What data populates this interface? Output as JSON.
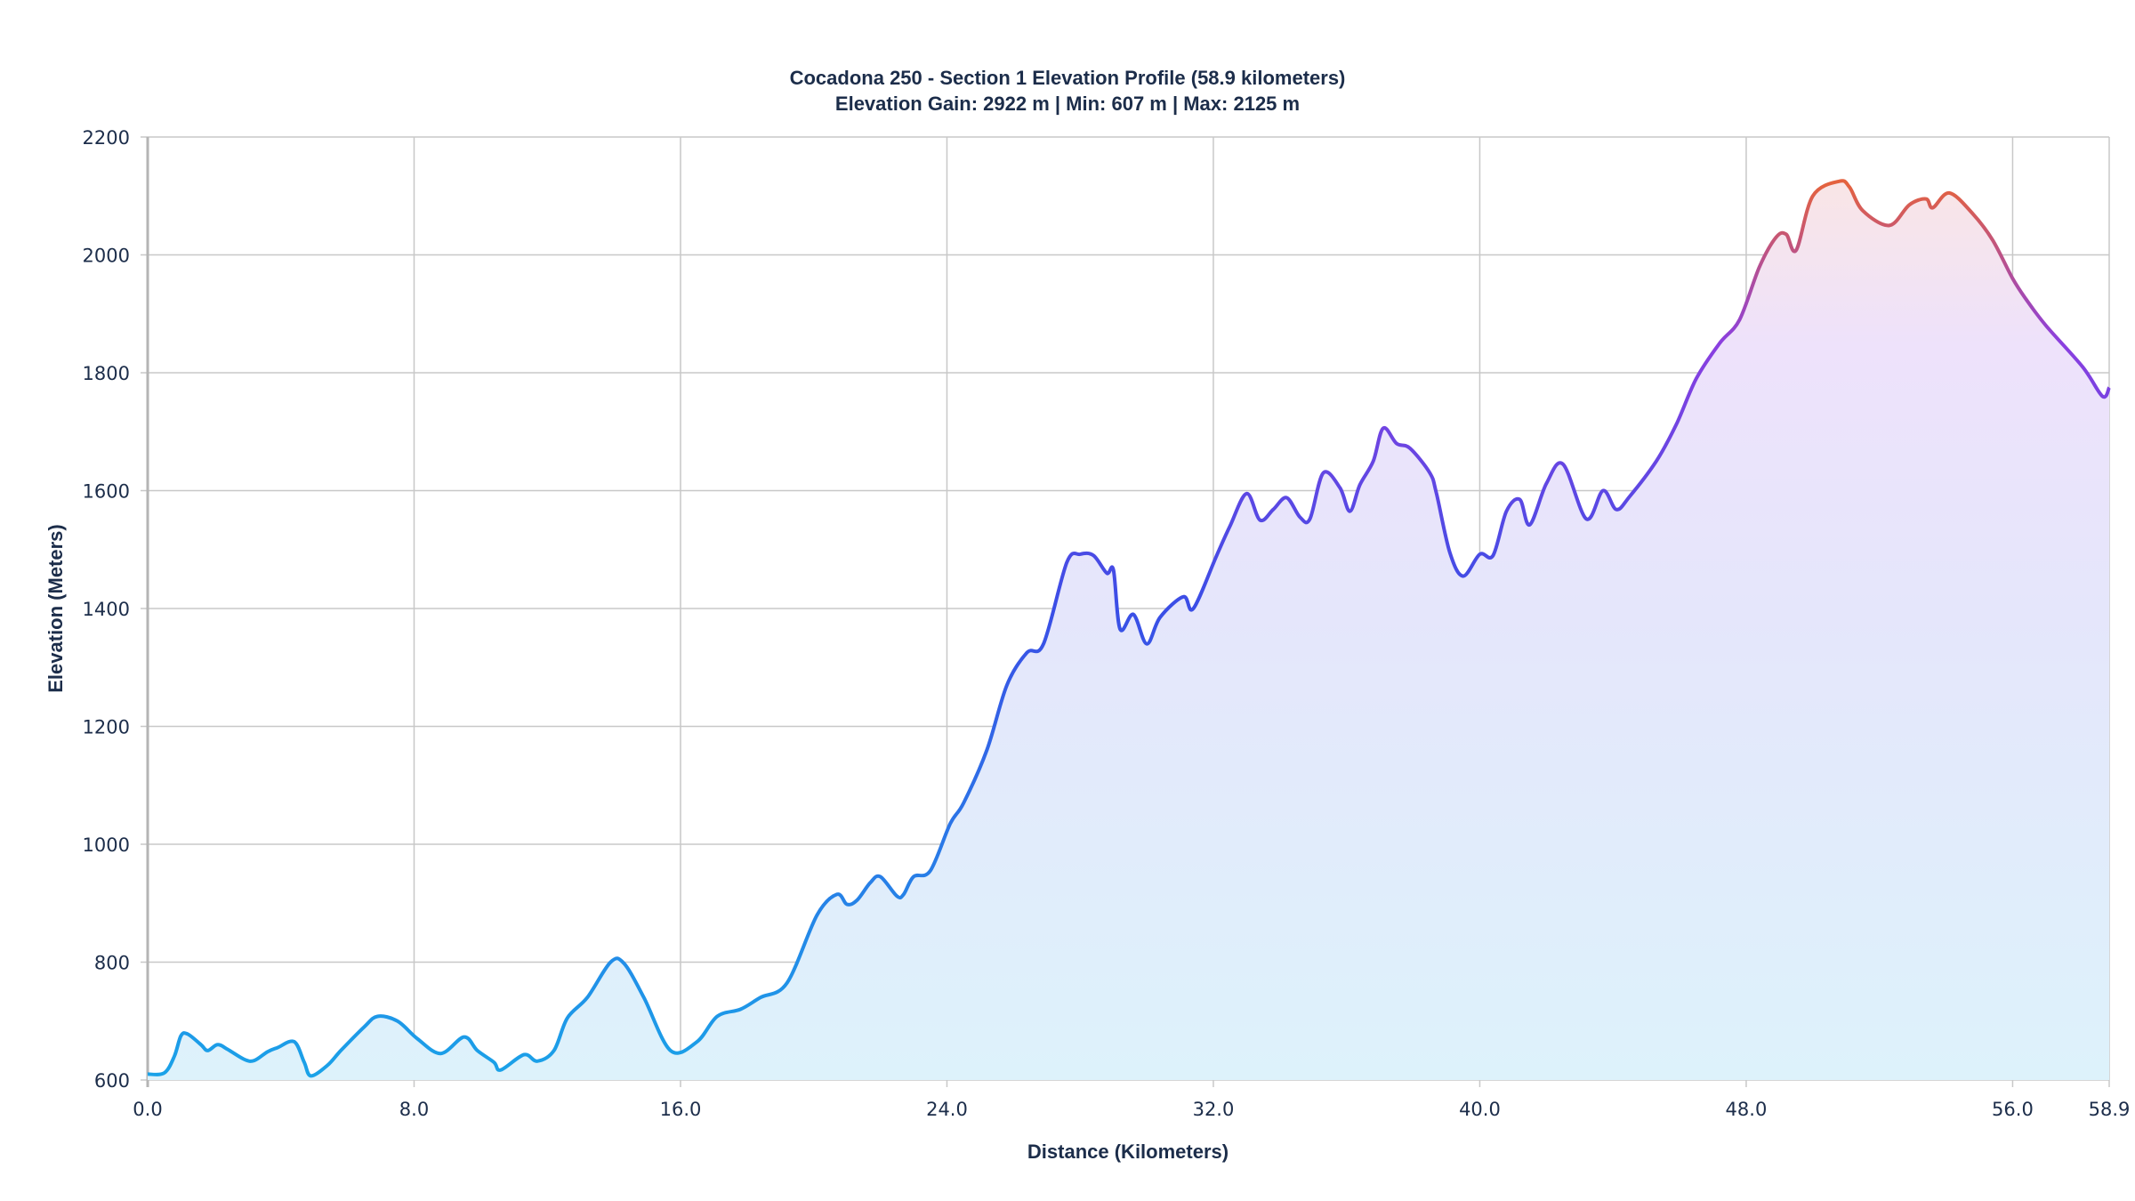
{
  "chart_data": {
    "type": "area",
    "title": "Cocadona 250 - Section 1 Elevation Profile (58.9 kilometers)",
    "subtitle": "Elevation Gain: 2922 m | Min: 607 m | Max: 2125 m",
    "xlabel": "Distance (Kilometers)",
    "ylabel": "Elevation (Meters)",
    "xlim": [
      0,
      58.9
    ],
    "ylim": [
      600,
      2200
    ],
    "x_ticks": [
      0,
      8,
      16,
      24,
      32,
      40,
      48,
      56,
      58.9
    ],
    "x_tick_labels": [
      "0.0",
      "8.0",
      "16.0",
      "24.0",
      "32.0",
      "40.0",
      "48.0",
      "56.0",
      "58.9"
    ],
    "y_ticks": [
      600,
      800,
      1000,
      1200,
      1400,
      1600,
      1800,
      2000,
      2200
    ],
    "y_tick_labels": [
      "600",
      "800",
      "1000",
      "1200",
      "1400",
      "1600",
      "1800",
      "2000",
      "2200"
    ],
    "grid": true,
    "colors": {
      "low": "#1aa3e8",
      "mid": "#3a4ee6",
      "high": "#8a3fe0",
      "peak": "#e4623f"
    },
    "x": [
      0,
      0.5,
      0.8,
      1.0,
      1.2,
      1.6,
      1.8,
      2.1,
      2.4,
      2.9,
      3.2,
      3.6,
      3.9,
      4.4,
      4.7,
      4.9,
      5.4,
      5.8,
      6.5,
      6.9,
      7.5,
      8.1,
      8.8,
      9.5,
      9.9,
      10.4,
      10.6,
      11.3,
      11.7,
      12.2,
      12.6,
      13.2,
      13.9,
      14.3,
      14.9,
      15.7,
      16.5,
      17.1,
      17.8,
      18.4,
      19.2,
      20.1,
      20.7,
      21.0,
      21.3,
      21.7,
      22.0,
      22.5,
      22.7,
      23.0,
      23.5,
      24.1,
      24.5,
      25.2,
      25.8,
      26.4,
      26.9,
      27.6,
      28.0,
      28.4,
      28.8,
      29.0,
      29.2,
      29.6,
      30.0,
      30.4,
      31.1,
      31.4,
      32.1,
      32.5,
      33.0,
      33.4,
      33.8,
      34.2,
      34.6,
      34.9,
      35.3,
      35.8,
      36.1,
      36.4,
      36.8,
      37.1,
      37.5,
      37.9,
      38.5,
      38.7,
      39.1,
      39.5,
      40.0,
      40.4,
      40.8,
      41.2,
      41.5,
      42.0,
      42.5,
      43.2,
      43.7,
      44.1,
      44.5,
      45.3,
      45.9,
      46.5,
      47.2,
      47.8,
      48.4,
      48.9,
      49.2,
      49.5,
      50.0,
      50.8,
      51.1,
      51.5,
      52.3,
      52.9,
      53.4,
      53.6,
      54.1,
      54.8,
      55.4,
      56.0,
      56.4,
      57.0,
      58.1,
      58.7,
      58.9
    ],
    "y": [
      610,
      612,
      640,
      675,
      678,
      660,
      650,
      660,
      652,
      635,
      633,
      648,
      655,
      665,
      630,
      607,
      625,
      650,
      690,
      708,
      700,
      670,
      645,
      673,
      650,
      630,
      617,
      643,
      632,
      650,
      705,
      740,
      800,
      798,
      740,
      650,
      665,
      708,
      720,
      740,
      765,
      880,
      915,
      898,
      905,
      935,
      945,
      912,
      915,
      945,
      955,
      1035,
      1070,
      1160,
      1270,
      1325,
      1340,
      1478,
      1492,
      1490,
      1460,
      1465,
      1365,
      1390,
      1340,
      1385,
      1420,
      1400,
      1490,
      1540,
      1595,
      1550,
      1568,
      1588,
      1555,
      1552,
      1630,
      1605,
      1565,
      1610,
      1650,
      1706,
      1680,
      1672,
      1630,
      1595,
      1495,
      1455,
      1492,
      1490,
      1565,
      1585,
      1542,
      1612,
      1645,
      1552,
      1600,
      1568,
      1590,
      1650,
      1712,
      1790,
      1850,
      1890,
      1980,
      2030,
      2035,
      2008,
      2100,
      2125,
      2115,
      2075,
      2050,
      2085,
      2095,
      2080,
      2105,
      2070,
      2025,
      1960,
      1925,
      1880,
      1810,
      1760,
      1775
    ]
  }
}
